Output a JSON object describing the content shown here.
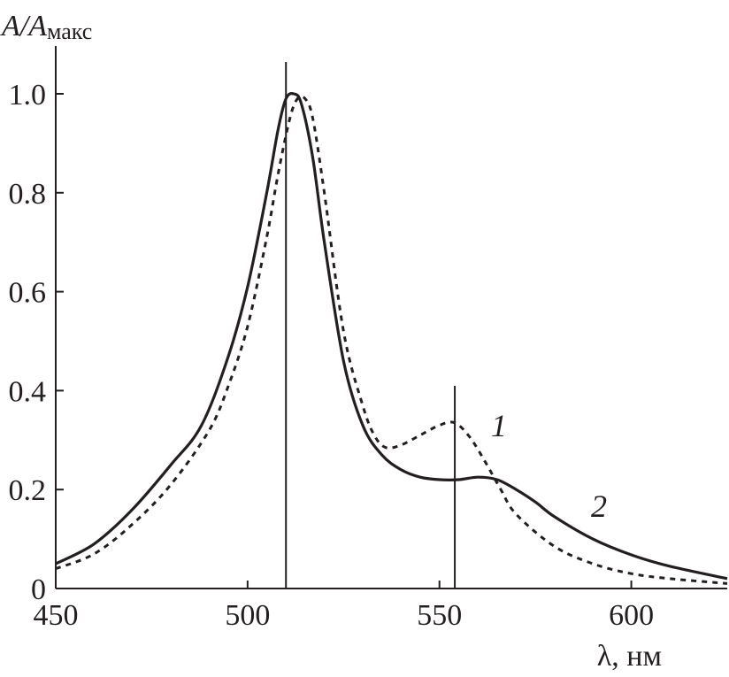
{
  "chart_data": {
    "type": "line",
    "xlabel": "λ, нм",
    "ylabel_main": "A/A",
    "ylabel_sub": "макс",
    "xlim": [
      450,
      625
    ],
    "ylim": [
      0,
      1.08
    ],
    "xticks": [
      450,
      500,
      550,
      600
    ],
    "xtick_labels": [
      "450",
      "500",
      "550",
      "600"
    ],
    "yticks": [
      0,
      0.2,
      0.4,
      0.6,
      0.8,
      1.0
    ],
    "ytick_labels": [
      "0",
      "0.2",
      "0.4",
      "0.6",
      "0.8",
      "1.0"
    ],
    "grid": false,
    "reference_lines_x": [
      510,
      554
    ],
    "series": [
      {
        "name": "1",
        "style": "dotted",
        "x": [
          450,
          460,
          470,
          480,
          490,
          495,
          500,
          505,
          508,
          511,
          513,
          515,
          517,
          520,
          525,
          530,
          533,
          536,
          540,
          545,
          550,
          554,
          558,
          562,
          566,
          570,
          580,
          590,
          600,
          610,
          625
        ],
        "y": [
          0.04,
          0.07,
          0.13,
          0.21,
          0.32,
          0.41,
          0.53,
          0.71,
          0.84,
          0.95,
          0.99,
          0.99,
          0.95,
          0.8,
          0.52,
          0.37,
          0.31,
          0.285,
          0.29,
          0.31,
          0.33,
          0.335,
          0.305,
          0.255,
          0.2,
          0.15,
          0.085,
          0.05,
          0.03,
          0.02,
          0.01
        ]
      },
      {
        "name": "2",
        "style": "solid",
        "x": [
          450,
          460,
          470,
          480,
          488,
          495,
          500,
          505,
          508,
          510,
          512,
          514,
          517,
          520,
          525,
          530,
          535,
          540,
          545,
          550,
          555,
          560,
          565,
          570,
          575,
          580,
          590,
          600,
          610,
          625
        ],
        "y": [
          0.05,
          0.09,
          0.16,
          0.25,
          0.33,
          0.47,
          0.61,
          0.8,
          0.93,
          0.99,
          1.0,
          0.98,
          0.87,
          0.7,
          0.46,
          0.33,
          0.27,
          0.24,
          0.225,
          0.22,
          0.22,
          0.225,
          0.22,
          0.2,
          0.175,
          0.145,
          0.1,
          0.068,
          0.045,
          0.02
        ]
      }
    ]
  }
}
